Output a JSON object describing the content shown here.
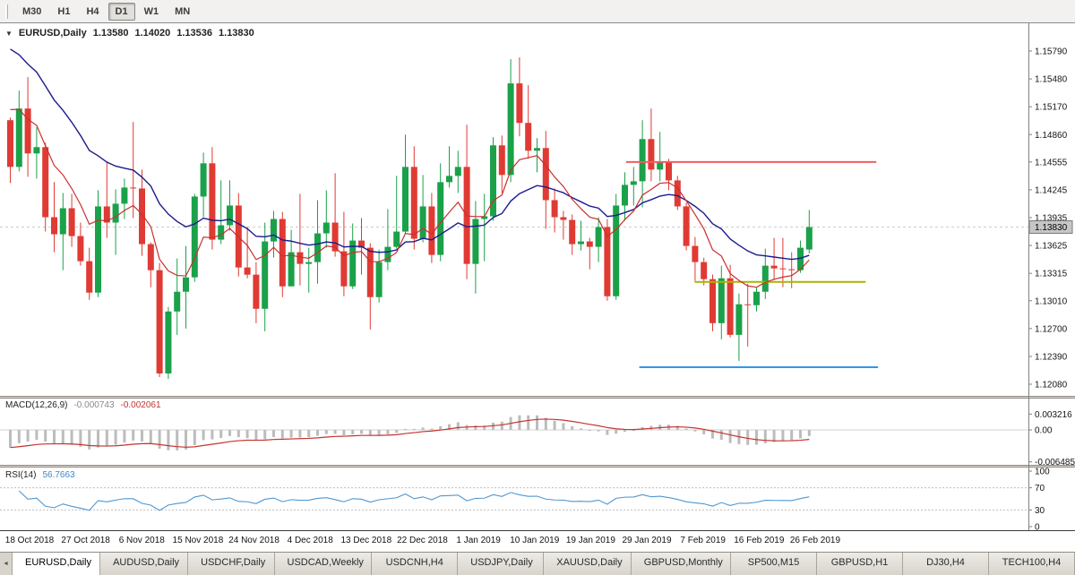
{
  "toolbar": {
    "buttons": [
      {
        "label": "M30",
        "active": false
      },
      {
        "label": "H1",
        "active": false
      },
      {
        "label": "H4",
        "active": false
      },
      {
        "label": "D1",
        "active": true
      },
      {
        "label": "W1",
        "active": false
      },
      {
        "label": "MN",
        "active": false
      }
    ]
  },
  "icons": {
    "dropdown": "▼",
    "tab_scroll": "◄"
  },
  "chart_header": {
    "symbol": "EURUSD,Daily",
    "open": "1.13580",
    "high": "1.14020",
    "low": "1.13536",
    "close": "1.13830"
  },
  "tabs": [
    {
      "label": "EURUSD,Daily",
      "active": true
    },
    {
      "label": "AUDUSD,Daily",
      "active": false
    },
    {
      "label": "USDCHF,Daily",
      "active": false
    },
    {
      "label": "USDCAD,Weekly",
      "active": false
    },
    {
      "label": "USDCNH,H4",
      "active": false
    },
    {
      "label": "USDJPY,Daily",
      "active": false
    },
    {
      "label": "XAUUSD,Daily",
      "active": false
    },
    {
      "label": "GBPUSD,Monthly",
      "active": false
    },
    {
      "label": "SP500,M15",
      "active": false
    },
    {
      "label": "GBPUSD,H1",
      "active": false
    },
    {
      "label": "DJ30,H4",
      "active": false
    },
    {
      "label": "TECH100,H4",
      "active": false
    }
  ],
  "chart_data": {
    "type": "candlestick",
    "symbol": "EURUSD",
    "timeframe": "Daily",
    "ylim": [
      1.1195,
      1.161
    ],
    "bull_color": "#1aa14a",
    "bear_color": "#e03a34",
    "current_price": 1.1383,
    "current_price_label": "1.13830",
    "y_axis_labels": [
      "1.15790",
      "1.15480",
      "1.15170",
      "1.14860",
      "1.14555",
      "1.14245",
      "1.13935",
      "1.13625",
      "1.13315",
      "1.13010",
      "1.12700",
      "1.12390",
      "1.12080"
    ],
    "x_axis_labels": [
      "18 Oct 2018",
      "27 Oct 2018",
      "6 Nov 2018",
      "15 Nov 2018",
      "24 Nov 2018",
      "4 Dec 2018",
      "13 Dec 2018",
      "22 Dec 2018",
      "1 Jan 2019",
      "10 Jan 2019",
      "19 Jan 2019",
      "29 Jan 2019",
      "7 Feb 2019",
      "16 Feb 2019",
      "26 Feb 2019"
    ],
    "candles": [
      [
        1.1502,
        1.1505,
        1.1432,
        1.145
      ],
      [
        1.145,
        1.1535,
        1.1445,
        1.1515
      ],
      [
        1.1515,
        1.155,
        1.1439,
        1.1465
      ],
      [
        1.1465,
        1.1494,
        1.1437,
        1.1472
      ],
      [
        1.1472,
        1.1477,
        1.1378,
        1.1394
      ],
      [
        1.1394,
        1.1433,
        1.1355,
        1.1375
      ],
      [
        1.1375,
        1.1421,
        1.1335,
        1.1404
      ],
      [
        1.1404,
        1.142,
        1.1361,
        1.1373
      ],
      [
        1.1373,
        1.1388,
        1.134,
        1.1345
      ],
      [
        1.1345,
        1.136,
        1.1302,
        1.131
      ],
      [
        1.131,
        1.1424,
        1.1305,
        1.1406
      ],
      [
        1.1406,
        1.1456,
        1.1371,
        1.1388
      ],
      [
        1.1388,
        1.1425,
        1.1352,
        1.1409
      ],
      [
        1.1409,
        1.1437,
        1.1392,
        1.1427
      ],
      [
        1.1427,
        1.15,
        1.1393,
        1.1426
      ],
      [
        1.1426,
        1.1447,
        1.1351,
        1.1364
      ],
      [
        1.1364,
        1.1366,
        1.1316,
        1.1335
      ],
      [
        1.1335,
        1.1343,
        1.1216,
        1.122
      ],
      [
        1.122,
        1.1294,
        1.1214,
        1.1289
      ],
      [
        1.1289,
        1.1348,
        1.1263,
        1.1311
      ],
      [
        1.1311,
        1.1362,
        1.127,
        1.1327
      ],
      [
        1.1327,
        1.142,
        1.1322,
        1.1417
      ],
      [
        1.1417,
        1.1466,
        1.1394,
        1.1454
      ],
      [
        1.1454,
        1.1472,
        1.1358,
        1.1369
      ],
      [
        1.1369,
        1.1435,
        1.1364,
        1.1385
      ],
      [
        1.1385,
        1.1435,
        1.1379,
        1.1407
      ],
      [
        1.1407,
        1.1421,
        1.1328,
        1.1338
      ],
      [
        1.1338,
        1.1383,
        1.1326,
        1.133
      ],
      [
        1.133,
        1.1344,
        1.1276,
        1.1292
      ],
      [
        1.1292,
        1.1388,
        1.1267,
        1.1367
      ],
      [
        1.1367,
        1.1401,
        1.1349,
        1.1392
      ],
      [
        1.1392,
        1.14,
        1.1305,
        1.1317
      ],
      [
        1.1317,
        1.138,
        1.1317,
        1.1355
      ],
      [
        1.1355,
        1.142,
        1.1318,
        1.1342
      ],
      [
        1.1342,
        1.136,
        1.131,
        1.1344
      ],
      [
        1.1344,
        1.1413,
        1.132,
        1.1376
      ],
      [
        1.1376,
        1.1424,
        1.136,
        1.1388
      ],
      [
        1.1388,
        1.1443,
        1.135,
        1.1356
      ],
      [
        1.1356,
        1.14,
        1.1306,
        1.1317
      ],
      [
        1.1317,
        1.1387,
        1.1314,
        1.1368
      ],
      [
        1.1368,
        1.1393,
        1.133,
        1.136
      ],
      [
        1.136,
        1.1365,
        1.1269,
        1.1305
      ],
      [
        1.1305,
        1.1358,
        1.1299,
        1.1344
      ],
      [
        1.1344,
        1.1403,
        1.1335,
        1.1361
      ],
      [
        1.1361,
        1.144,
        1.1359,
        1.1378
      ],
      [
        1.1378,
        1.1486,
        1.1375,
        1.145
      ],
      [
        1.145,
        1.1473,
        1.1358,
        1.137
      ],
      [
        1.137,
        1.1441,
        1.1366,
        1.1406
      ],
      [
        1.1406,
        1.1421,
        1.1343,
        1.1352
      ],
      [
        1.1352,
        1.1454,
        1.1345,
        1.1433
      ],
      [
        1.1433,
        1.1473,
        1.1427,
        1.144
      ],
      [
        1.144,
        1.1468,
        1.1421,
        1.145
      ],
      [
        1.145,
        1.1497,
        1.1325,
        1.1342
      ],
      [
        1.1342,
        1.1412,
        1.1309,
        1.1392
      ],
      [
        1.1392,
        1.142,
        1.1345,
        1.1395
      ],
      [
        1.1395,
        1.1483,
        1.139,
        1.1474
      ],
      [
        1.1474,
        1.1485,
        1.1421,
        1.1441
      ],
      [
        1.1441,
        1.157,
        1.1433,
        1.1543
      ],
      [
        1.1543,
        1.1572,
        1.1484,
        1.1499
      ],
      [
        1.1499,
        1.1541,
        1.1459,
        1.1468
      ],
      [
        1.1468,
        1.1482,
        1.1444,
        1.1471
      ],
      [
        1.1471,
        1.149,
        1.1381,
        1.1413
      ],
      [
        1.1413,
        1.1426,
        1.1377,
        1.1394
      ],
      [
        1.1394,
        1.1401,
        1.1369,
        1.1391
      ],
      [
        1.1391,
        1.1397,
        1.1352,
        1.1364
      ],
      [
        1.1364,
        1.139,
        1.1357,
        1.1367
      ],
      [
        1.1367,
        1.1371,
        1.1336,
        1.1361
      ],
      [
        1.1361,
        1.1394,
        1.1344,
        1.1383
      ],
      [
        1.1383,
        1.1392,
        1.1301,
        1.1306
      ],
      [
        1.1306,
        1.142,
        1.1302,
        1.1407
      ],
      [
        1.1407,
        1.1444,
        1.139,
        1.143
      ],
      [
        1.143,
        1.145,
        1.1407,
        1.1434
      ],
      [
        1.1434,
        1.1502,
        1.1405,
        1.1481
      ],
      [
        1.1481,
        1.1515,
        1.1434,
        1.1447
      ],
      [
        1.1447,
        1.1489,
        1.1434,
        1.1456
      ],
      [
        1.1456,
        1.1459,
        1.1424,
        1.1435
      ],
      [
        1.1435,
        1.144,
        1.1402,
        1.1406
      ],
      [
        1.1406,
        1.141,
        1.1357,
        1.1362
      ],
      [
        1.1362,
        1.1372,
        1.1323,
        1.1344
      ],
      [
        1.1344,
        1.1349,
        1.1318,
        1.1325
      ],
      [
        1.1325,
        1.133,
        1.1267,
        1.1276
      ],
      [
        1.1276,
        1.134,
        1.1258,
        1.1326
      ],
      [
        1.1326,
        1.1341,
        1.126,
        1.1263
      ],
      [
        1.1263,
        1.1309,
        1.1234,
        1.1297
      ],
      [
        1.1297,
        1.132,
        1.125,
        1.1296
      ],
      [
        1.1296,
        1.1316,
        1.1289,
        1.1311
      ],
      [
        1.1311,
        1.1359,
        1.1303,
        1.134
      ],
      [
        1.134,
        1.1371,
        1.1324,
        1.1337
      ],
      [
        1.1337,
        1.1371,
        1.1316,
        1.1336
      ],
      [
        1.1336,
        1.1355,
        1.1315,
        1.1335
      ],
      [
        1.1335,
        1.1368,
        1.1332,
        1.136
      ],
      [
        1.1358,
        1.1402,
        1.13536,
        1.1383
      ]
    ],
    "overlays": {
      "ma_slow": {
        "name": "ma-slow",
        "period": 20,
        "seed": 1.1595,
        "color": "#1b1b8e"
      },
      "ma_fast": {
        "name": "ma-fast",
        "period": 8,
        "seed": 1.1532,
        "color": "#c8302e"
      },
      "hlines": [
        {
          "name": "hline-resistance-red",
          "price": 1.14555,
          "from_bar": 70.5,
          "to_bar": 99.0,
          "color": "#f05e5e"
        },
        {
          "name": "hline-support-olive",
          "price": 1.1322,
          "from_bar": 78.3,
          "to_bar": 97.8,
          "color": "#abb400"
        },
        {
          "name": "hline-support-blue",
          "price": 1.1227,
          "from_bar": 72.0,
          "to_bar": 99.2,
          "color": "#2f97e8"
        }
      ]
    },
    "indicators": {
      "macd": {
        "label": "MACD(12,26,9)",
        "fast": 12,
        "slow": 26,
        "signal": 9,
        "value_main": "-0.000743",
        "value_signal": "-0.002061",
        "axis_labels": [
          "0.003216",
          "0.00",
          "-0.006485"
        ],
        "seed_fast_offset": -0.0015,
        "seed_slow_offset": 0.0025,
        "histogram_color": "#bcbcbc",
        "signal_color": "#c43430"
      },
      "rsi": {
        "label": "RSI(14)",
        "period": 14,
        "value": "56.7663",
        "axis_labels": [
          "100",
          "70",
          "30",
          "0"
        ],
        "levels": [
          70,
          30
        ],
        "range": [
          0,
          100
        ],
        "color": "#4e97d1"
      }
    }
  }
}
